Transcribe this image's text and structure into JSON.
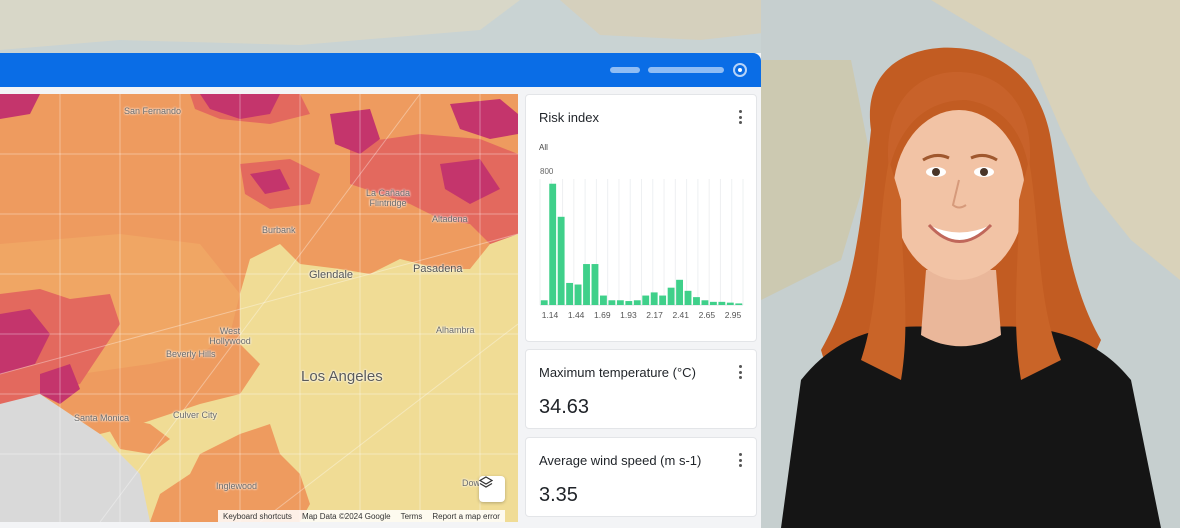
{
  "map": {
    "labels": [
      "San Fernando",
      "La Cañada Flintridge",
      "Altadena",
      "Burbank",
      "Glendale",
      "Pasadena",
      "West Hollywood",
      "Beverly Hills",
      "Alhambra",
      "Los Angeles",
      "Santa Monica",
      "Culver City",
      "Inglewood",
      "Downey"
    ],
    "attribution": {
      "shortcuts": "Keyboard shortcuts",
      "data": "Map Data ©2024 Google",
      "terms": "Terms",
      "report": "Report a map error"
    },
    "layers_icon": "layers-icon",
    "colors": {
      "low": "#f3d98a",
      "mid": "#ef9c5e",
      "high": "#e0635e",
      "top": "#c0336d"
    }
  },
  "risk_card": {
    "title": "Risk index",
    "filter": "All",
    "menu_icon": "kebab-icon",
    "chart_data": {
      "type": "bar",
      "y_top_label": "800",
      "ylim": [
        0,
        800
      ],
      "x_tick_labels": [
        "1.14",
        "1.44",
        "1.69",
        "1.93",
        "2.17",
        "2.41",
        "2.65",
        "2.95"
      ],
      "values": [
        30,
        770,
        560,
        140,
        130,
        260,
        260,
        60,
        30,
        30,
        25,
        30,
        60,
        80,
        60,
        110,
        160,
        90,
        50,
        30,
        20,
        20,
        15,
        10
      ],
      "bar_color": "#3fd08a"
    }
  },
  "temp_card": {
    "title": "Maximum temperature (°C)",
    "value": "34.63",
    "menu_icon": "kebab-icon"
  },
  "wind_card": {
    "title": "Average wind speed (m s-1)",
    "value": "3.35",
    "menu_icon": "kebab-icon"
  }
}
